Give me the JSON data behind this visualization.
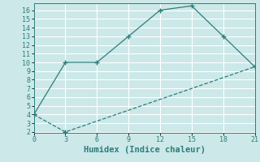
{
  "xlabel": "Humidex (Indice chaleur)",
  "ylabel": "",
  "background_color": "#cce8e8",
  "grid_color": "#ffffff",
  "line_color": "#2e7d7d",
  "xlim": [
    0,
    21
  ],
  "ylim": [
    2,
    16.5
  ],
  "xticks": [
    0,
    3,
    6,
    9,
    12,
    15,
    18,
    21
  ],
  "yticks": [
    2,
    3,
    4,
    5,
    6,
    7,
    8,
    9,
    10,
    11,
    12,
    13,
    14,
    15,
    16
  ],
  "line1_x": [
    0,
    3,
    6,
    9,
    12,
    15,
    18,
    21
  ],
  "line1_y": [
    4,
    10,
    10,
    13,
    16,
    16.5,
    13,
    9.5
  ],
  "line2_x": [
    0,
    3,
    21
  ],
  "line2_y": [
    4,
    2,
    9.5
  ],
  "marker": "+",
  "marker_size": 4,
  "linewidth": 0.9,
  "font_family": "monospace",
  "xlabel_fontsize": 7.5,
  "tick_fontsize": 6.0
}
